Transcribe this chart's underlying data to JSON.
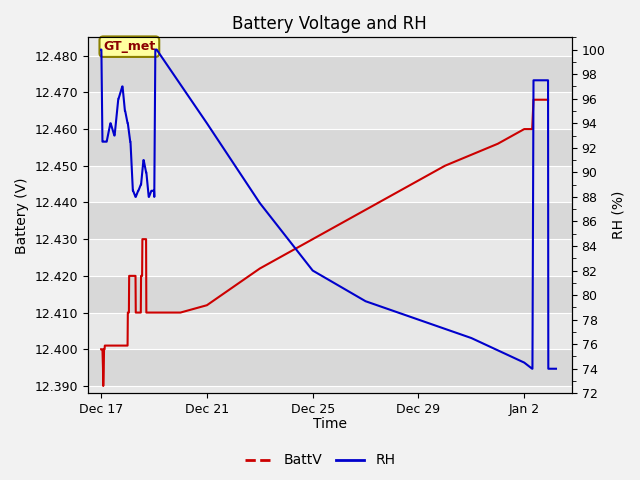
{
  "title": "Battery Voltage and RH",
  "xlabel": "Time",
  "ylabel_left": "Battery (V)",
  "ylabel_right": "RH (%)",
  "ylim_left": [
    12.388,
    12.485
  ],
  "ylim_right": [
    72,
    101
  ],
  "yticks_left": [
    12.39,
    12.4,
    12.41,
    12.42,
    12.43,
    12.44,
    12.45,
    12.46,
    12.47,
    12.48
  ],
  "yticks_right": [
    72,
    74,
    76,
    78,
    80,
    82,
    84,
    86,
    88,
    90,
    92,
    94,
    96,
    98,
    100
  ],
  "background_color": "#f2f2f2",
  "plot_bg_color": "#e8e8e8",
  "grid_color": "#ffffff",
  "annotation_text": "GT_met",
  "legend_battv_color": "#cc0000",
  "legend_rh_color": "#0000cc",
  "title_fontsize": 12,
  "tick_label_fontsize": 9,
  "axis_label_fontsize": 10,
  "legend_fontsize": 10,
  "battv_color": "#cc0000",
  "rh_color": "#0000cc",
  "battv_linewidth": 1.5,
  "rh_linewidth": 1.5,
  "xtick_labels": [
    "Dec 17",
    "Dec 21",
    "Dec 25",
    "Dec 29",
    "Jan 2"
  ],
  "xtick_positions": [
    0,
    4,
    8,
    12,
    16
  ],
  "xlim": [
    -0.5,
    17.8
  ],
  "battv_x": [
    0.0,
    0.05,
    0.07,
    0.08,
    0.1,
    0.11,
    0.13,
    0.14,
    1.0,
    1.01,
    1.05,
    1.06,
    1.3,
    1.31,
    1.5,
    1.51,
    1.55,
    1.56,
    1.7,
    1.71,
    1.9,
    1.91,
    2.2,
    2.5,
    3.0,
    4.0,
    5.0,
    6.0,
    7.0,
    8.0,
    9.0,
    10.0,
    11.0,
    12.0,
    13.0,
    14.0,
    15.0,
    16.0,
    16.3,
    16.35,
    16.9
  ],
  "battv_y": [
    12.4,
    12.4,
    12.395,
    12.39,
    12.395,
    12.4,
    12.4,
    12.401,
    12.401,
    12.41,
    12.41,
    12.42,
    12.42,
    12.41,
    12.41,
    12.42,
    12.42,
    12.43,
    12.43,
    12.41,
    12.41,
    12.41,
    12.41,
    12.41,
    12.41,
    12.412,
    12.417,
    12.422,
    12.426,
    12.43,
    12.434,
    12.438,
    12.442,
    12.446,
    12.45,
    12.453,
    12.456,
    12.46,
    12.46,
    12.468,
    12.468
  ],
  "rh_x": [
    0.0,
    0.01,
    0.05,
    0.06,
    0.2,
    0.21,
    0.35,
    0.36,
    0.5,
    0.51,
    0.65,
    0.66,
    0.8,
    0.81,
    0.9,
    0.91,
    1.0,
    1.01,
    1.1,
    1.11,
    1.2,
    1.21,
    1.3,
    1.31,
    1.4,
    1.41,
    1.5,
    1.51,
    1.6,
    1.61,
    1.7,
    1.71,
    1.8,
    1.81,
    1.9,
    1.91,
    2.0,
    2.01,
    2.05,
    2.1,
    4.0,
    6.0,
    8.0,
    10.0,
    12.0,
    14.0,
    16.0,
    16.3,
    16.31,
    16.35,
    16.9,
    16.91,
    17.2
  ],
  "rh_y": [
    100.0,
    100.0,
    92.5,
    92.5,
    92.5,
    92.5,
    94.0,
    94.0,
    93.0,
    93.0,
    96.0,
    96.0,
    97.0,
    97.0,
    95.0,
    95.0,
    94.0,
    94.0,
    92.5,
    92.5,
    88.5,
    88.5,
    88.0,
    88.0,
    88.5,
    88.5,
    89.0,
    89.0,
    91.0,
    91.0,
    90.0,
    90.0,
    88.0,
    88.0,
    88.5,
    88.5,
    88.5,
    88.0,
    100.0,
    100.0,
    94.0,
    87.5,
    82.0,
    79.5,
    78.0,
    76.5,
    74.5,
    74.0,
    74.0,
    97.5,
    97.5,
    74.0,
    74.0
  ]
}
